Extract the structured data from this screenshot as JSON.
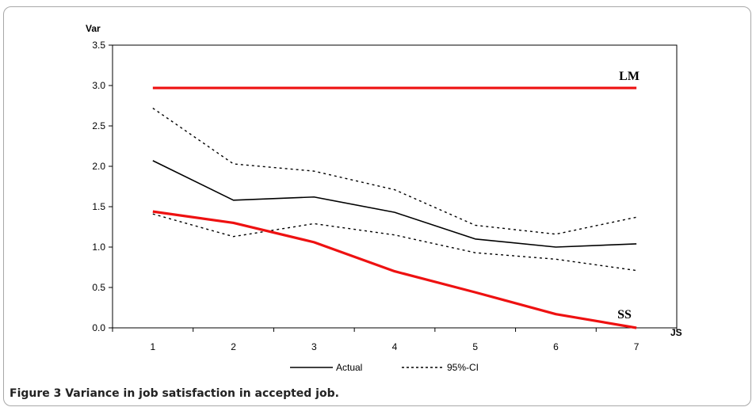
{
  "chart_data": {
    "type": "line",
    "ylabel": "Var",
    "xlabel": "JS",
    "x": [
      1,
      2,
      3,
      4,
      5,
      6,
      7
    ],
    "ylim": [
      0,
      3.5
    ],
    "yticks": [
      "0.0",
      "0.5",
      "1.0",
      "1.5",
      "2.0",
      "2.5",
      "3.0",
      "3.5"
    ],
    "xticks": [
      "1",
      "2",
      "3",
      "4",
      "5",
      "6",
      "7"
    ],
    "grid": false,
    "legend_position": "bottom",
    "series": [
      {
        "name": "Actual",
        "style": "solid",
        "color": "#000000",
        "values": [
          2.07,
          1.58,
          1.62,
          1.43,
          1.1,
          1.0,
          1.04
        ]
      },
      {
        "name": "95%-CI",
        "style": "dashed",
        "color": "#000000",
        "values": [
          2.72,
          2.03,
          1.94,
          1.71,
          1.27,
          1.16,
          1.37
        ]
      },
      {
        "name": "",
        "style": "dashed",
        "color": "#000000",
        "values": [
          1.41,
          1.13,
          1.29,
          1.15,
          0.93,
          0.85,
          0.71
        ]
      },
      {
        "name": "",
        "style": "solid-thick",
        "color": "#ee1111",
        "values": [
          2.97,
          2.97,
          2.97,
          2.97,
          2.97,
          2.97,
          2.97
        ]
      },
      {
        "name": "",
        "style": "solid-thick",
        "color": "#ee1111",
        "values": [
          1.44,
          1.3,
          1.06,
          0.7,
          0.44,
          0.17,
          0.0
        ]
      }
    ],
    "annotations": [
      {
        "text": "LM",
        "x": 7,
        "y": 2.97
      },
      {
        "text": "SS",
        "x": 7,
        "y": 0.0
      }
    ],
    "legend": {
      "actual": "Actual",
      "ci": "95%-CI"
    }
  },
  "caption": "Figure 3 Variance in job satisfaction in accepted job."
}
